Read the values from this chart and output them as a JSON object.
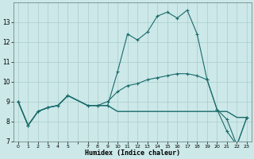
{
  "title": "",
  "xlabel": "Humidex (Indice chaleur)",
  "ylabel": "",
  "bg_color": "#cce8e8",
  "grid_color": "#aacccc",
  "line_color": "#1a6b6b",
  "x": [
    0,
    1,
    2,
    3,
    4,
    5,
    7,
    8,
    9,
    10,
    11,
    12,
    13,
    14,
    15,
    16,
    17,
    18,
    19,
    20,
    21,
    22,
    23
  ],
  "line1": [
    9.0,
    7.8,
    8.5,
    8.7,
    8.8,
    9.3,
    8.8,
    8.8,
    8.8,
    10.5,
    12.4,
    12.1,
    12.5,
    13.3,
    13.5,
    13.2,
    13.6,
    12.4,
    10.1,
    8.6,
    8.1,
    6.8,
    8.2
  ],
  "line2": [
    9.0,
    7.8,
    8.5,
    8.7,
    8.8,
    9.3,
    8.8,
    8.8,
    9.0,
    9.5,
    9.8,
    9.9,
    10.1,
    10.2,
    10.3,
    10.4,
    10.4,
    10.3,
    10.1,
    8.6,
    7.5,
    6.8,
    8.2
  ],
  "line3": [
    9.0,
    7.8,
    8.5,
    8.7,
    8.8,
    9.3,
    8.8,
    8.8,
    8.8,
    8.5,
    8.5,
    8.5,
    8.5,
    8.5,
    8.5,
    8.5,
    8.5,
    8.5,
    8.5,
    8.5,
    8.5,
    8.2,
    8.2
  ],
  "ylim": [
    7,
    14
  ],
  "yticks": [
    7,
    8,
    9,
    10,
    11,
    12,
    13
  ],
  "xtick_labels": [
    "0",
    "1",
    "2",
    "3",
    "4",
    "5",
    "",
    "7",
    "8",
    "9",
    "10",
    "11",
    "12",
    "13",
    "14",
    "15",
    "16",
    "17",
    "18",
    "19",
    "20",
    "21",
    "22",
    "23"
  ],
  "xticks": [
    0,
    1,
    2,
    3,
    4,
    5,
    6,
    7,
    8,
    9,
    10,
    11,
    12,
    13,
    14,
    15,
    16,
    17,
    18,
    19,
    20,
    21,
    22,
    23
  ]
}
